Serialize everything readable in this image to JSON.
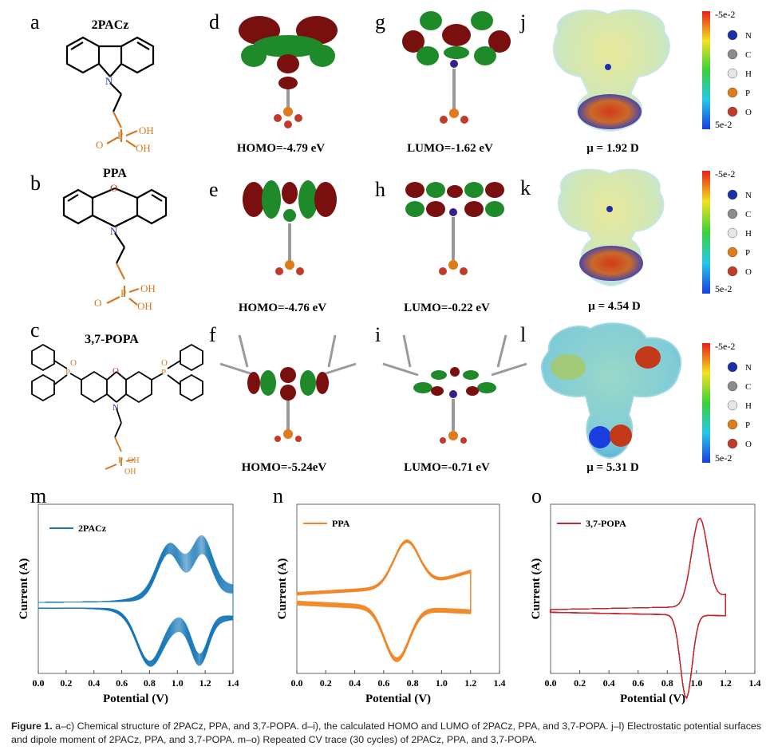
{
  "panels_top": {
    "a": {
      "letter": "a",
      "name": "2PACz"
    },
    "b": {
      "letter": "b",
      "name": "PPA"
    },
    "c": {
      "letter": "c",
      "name": "3,7-POPA"
    },
    "d": {
      "letter": "d",
      "label": "HOMO=-4.79 eV"
    },
    "e": {
      "letter": "e",
      "label": "HOMO=-4.76 eV"
    },
    "f": {
      "letter": "f",
      "label": "HOMO=-5.24eV"
    },
    "g": {
      "letter": "g",
      "label": "LUMO=-1.62 eV"
    },
    "h": {
      "letter": "h",
      "label": "LUMO=-0.22 eV"
    },
    "i": {
      "letter": "i",
      "label": "LUMO=-0.71 eV"
    },
    "j": {
      "letter": "j",
      "label": "μ = 1.92 D"
    },
    "k": {
      "letter": "k",
      "label": "μ = 4.54 D"
    },
    "l": {
      "letter": "l",
      "label": "μ = 5.31 D"
    }
  },
  "atoms": {
    "oh": "OH",
    "o_eq": "O=P",
    "p": "P",
    "o": "O",
    "n": "N"
  },
  "esp_colorbar": {
    "top": "-5e-2",
    "bottom": "5e-2"
  },
  "atom_legend": [
    {
      "symbol": "N",
      "color": "#1b2fa8"
    },
    {
      "symbol": "C",
      "color": "#8a8a8a"
    },
    {
      "symbol": "H",
      "color": "#e6e6e6"
    },
    {
      "symbol": "P",
      "color": "#e07a1a"
    },
    {
      "symbol": "O",
      "color": "#c23a2a"
    }
  ],
  "colors": {
    "homo_lobe_a": "#7a0f10",
    "homo_lobe_b": "#1f8a2a",
    "bond_orange": "#d4771f"
  },
  "chart_data": [
    {
      "type": "line",
      "panel": "m",
      "series": [
        {
          "name": "2PACz",
          "color": "#1a78b8"
        }
      ],
      "xlabel": "Potential (V)",
      "ylabel": "Current (A)",
      "xlim": [
        0.0,
        1.4
      ],
      "xticks": [
        "0.0",
        "0.2",
        "0.4",
        "0.6",
        "0.8",
        "1.0",
        "1.2",
        "1.4"
      ],
      "cycles": 30,
      "x_range": [
        0.0,
        1.4
      ],
      "anodic_peaks_x": [
        0.94,
        1.18
      ],
      "cathodic_peaks_x": [
        0.8,
        1.16
      ]
    },
    {
      "type": "line",
      "panel": "n",
      "series": [
        {
          "name": "PPA",
          "color": "#f0882a"
        }
      ],
      "xlabel": "Potential (V)",
      "ylabel": "Current (A)",
      "xlim": [
        0.0,
        1.4
      ],
      "xticks": [
        "0.0",
        "0.2",
        "0.4",
        "0.6",
        "0.8",
        "1.0",
        "1.2",
        "1.4"
      ],
      "cycles": 30,
      "x_range": [
        0.0,
        1.2
      ],
      "anodic_peaks_x": [
        0.76
      ],
      "cathodic_peaks_x": [
        0.69
      ]
    },
    {
      "type": "line",
      "panel": "o",
      "series": [
        {
          "name": "3,7-POPA",
          "color": "#c8242a"
        }
      ],
      "xlabel": "Potential (V)",
      "ylabel": "Current (A)",
      "xlim": [
        0.0,
        1.4
      ],
      "xticks": [
        "0.0",
        "0.2",
        "0.4",
        "0.6",
        "0.8",
        "1.0",
        "1.2",
        "1.4"
      ],
      "cycles": 30,
      "x_range": [
        0.0,
        1.2
      ],
      "anodic_peaks_x": [
        1.02
      ],
      "cathodic_peaks_x": [
        0.93
      ]
    }
  ],
  "panels_bottom": {
    "m": "m",
    "n": "n",
    "o": "o"
  },
  "caption": {
    "figure_label": "Figure 1.",
    "text": " a–c) Chemical structure of 2PACz, PPA, and 3,7-POPA. d–i), the calculated HOMO and LUMO of 2PACz, PPA, and 3,7-POPA. j–l) Electrostatic potential surfaces and dipole moment of 2PACz, PPA, and 3,7-POPA. m–o) Repeated CV trace (30 cycles) of 2PACz, PPA, and 3,7-POPA."
  }
}
